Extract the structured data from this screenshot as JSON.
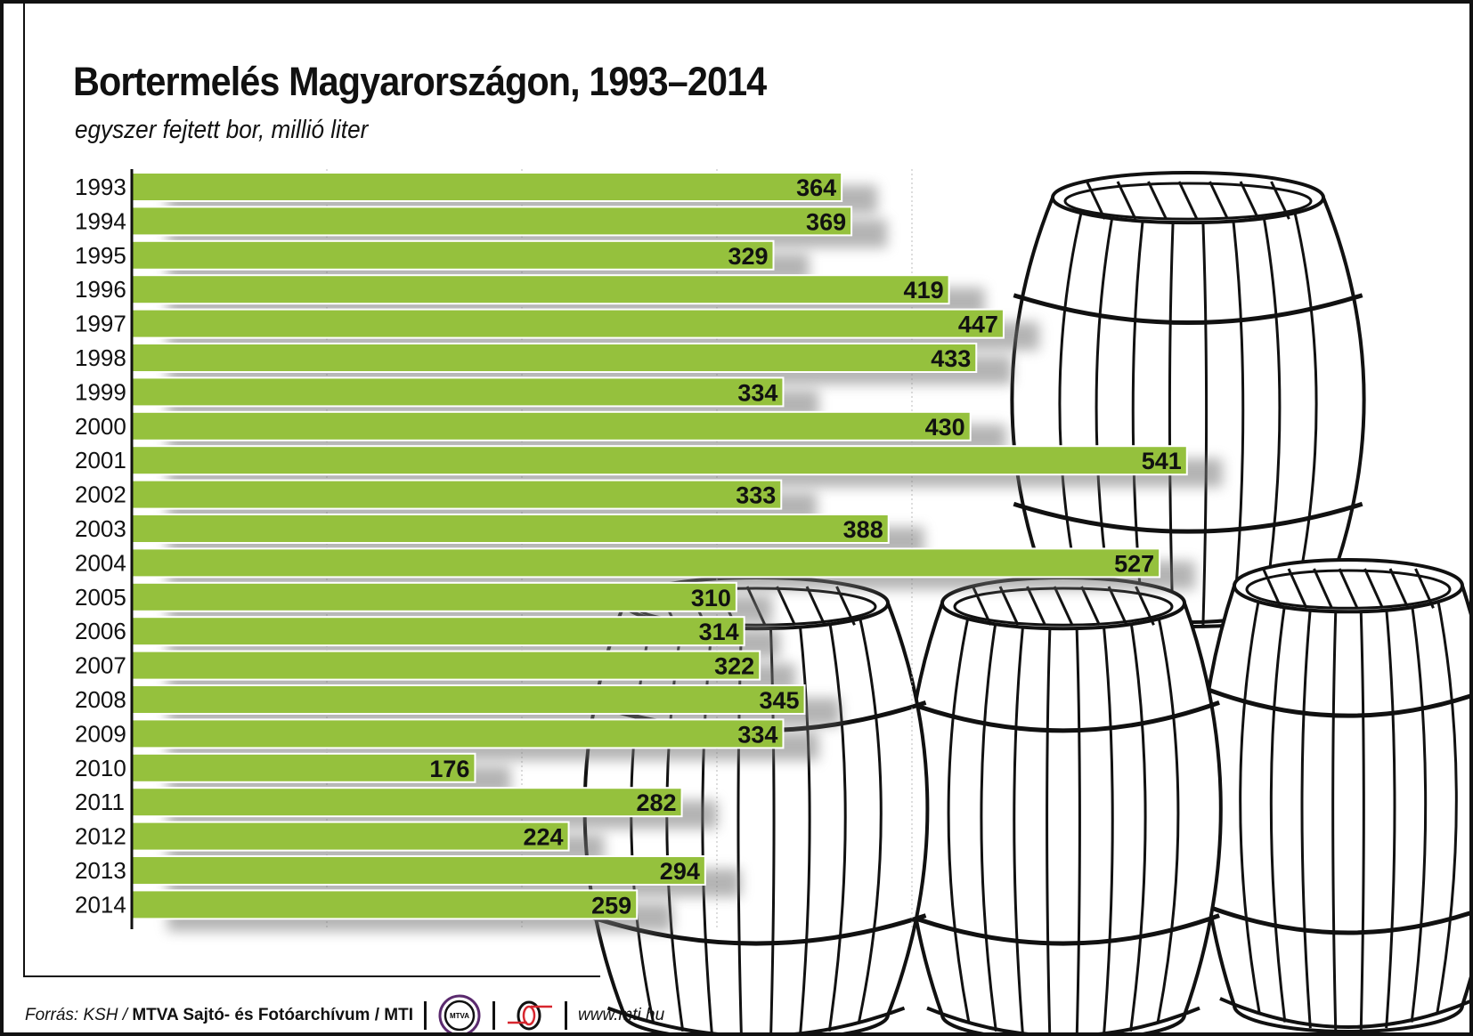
{
  "chart_data": {
    "type": "bar",
    "orientation": "horizontal",
    "title": "Bortermelés Magyarországon, 1993–2014",
    "subtitle": "egyszer fejtett bor, millió liter",
    "categories": [
      "1993",
      "1994",
      "1995",
      "1996",
      "1997",
      "1998",
      "1999",
      "2000",
      "2001",
      "2002",
      "2003",
      "2004",
      "2005",
      "2006",
      "2007",
      "2008",
      "2009",
      "2010",
      "2011",
      "2012",
      "2013",
      "2014"
    ],
    "values": [
      364,
      369,
      329,
      419,
      447,
      433,
      334,
      430,
      541,
      333,
      388,
      527,
      310,
      314,
      322,
      345,
      334,
      176,
      282,
      224,
      294,
      259
    ],
    "xlim": [
      0,
      560
    ],
    "grid": true,
    "gridlines": [
      100,
      200,
      300,
      400
    ],
    "bar_color": "#95c13d",
    "data_labels": true
  },
  "footer": {
    "source_prefix": "Forrás: KSH /",
    "source_bold": "MTVA Sajtó- és Fotóarchívum / MTI",
    "logo_mtva": "MTVA",
    "website": "www.mti.hu"
  },
  "colors": {
    "mtva_ring": "#5b2a6e",
    "mti_red": "#d7262e"
  }
}
